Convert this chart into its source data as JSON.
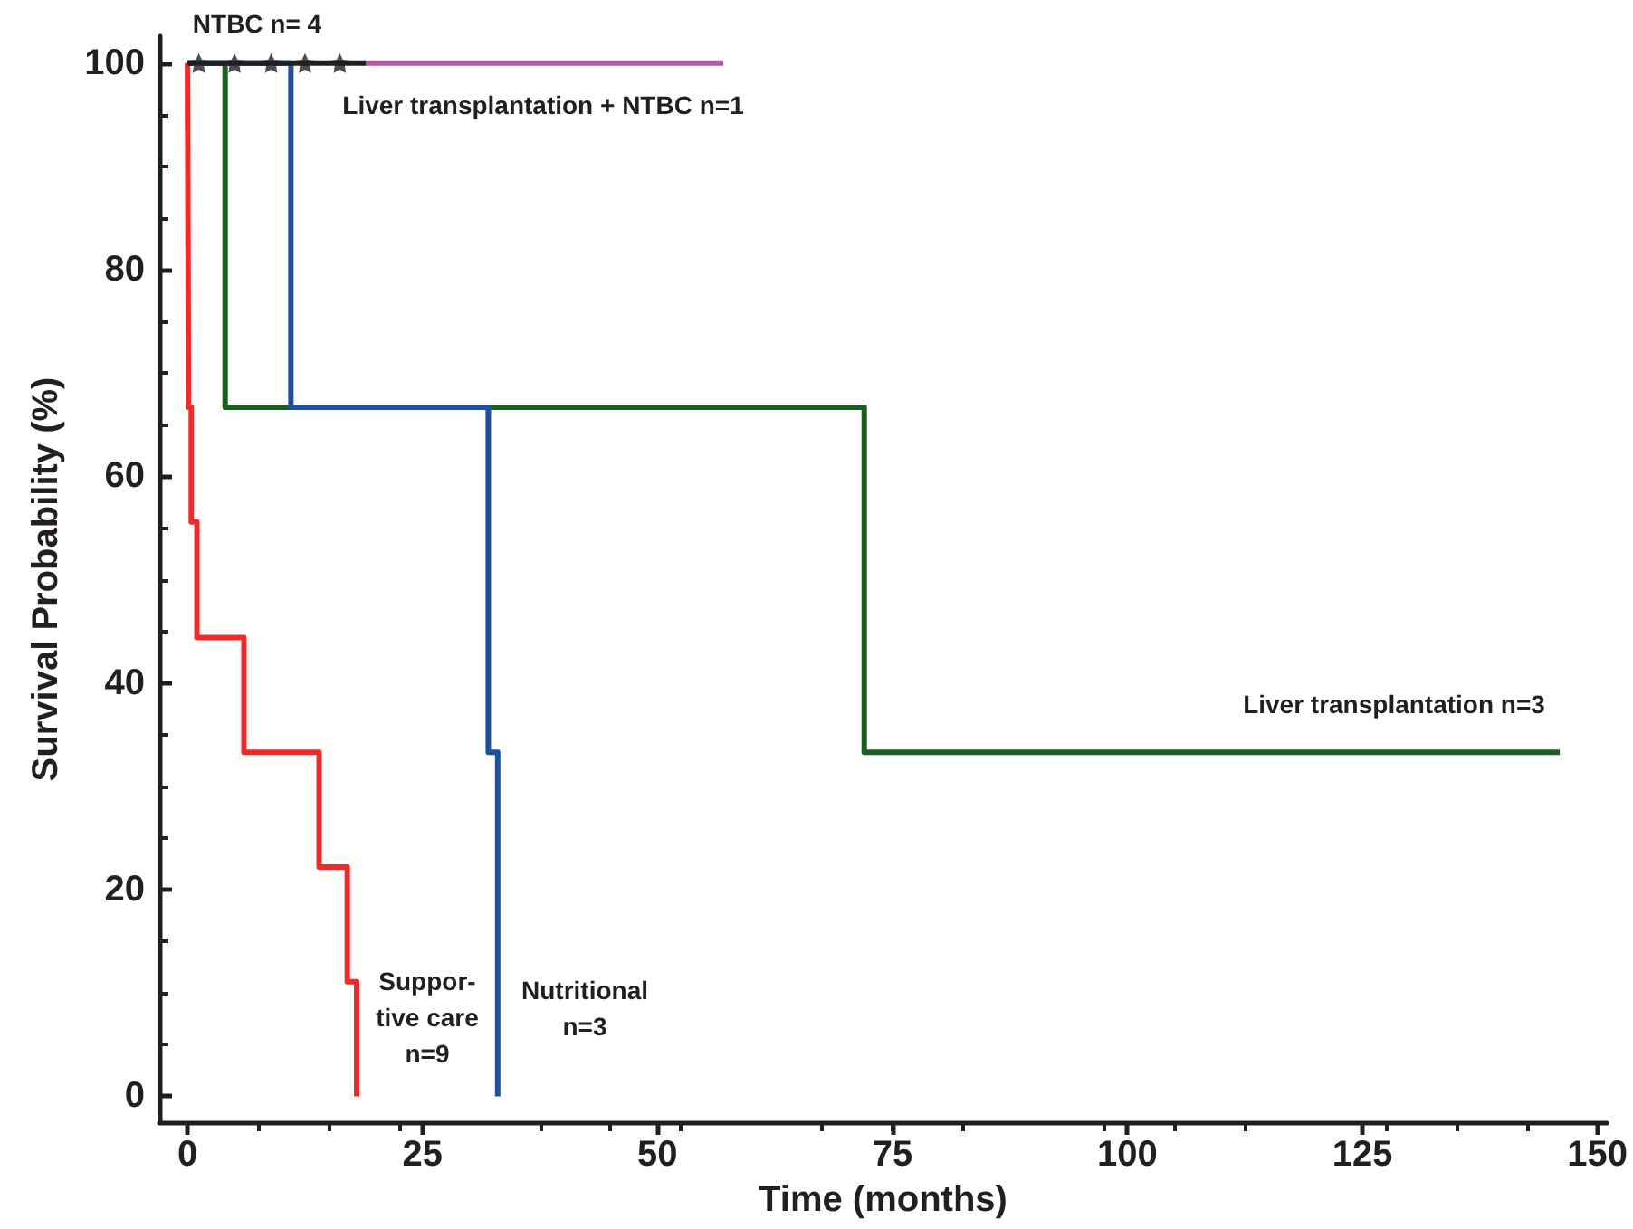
{
  "chart_data": {
    "type": "step",
    "xlabel": "Time (months)",
    "ylabel": "Survival Probability (%)",
    "xlim": [
      -3,
      151
    ],
    "xticks": [
      0,
      25,
      50,
      75,
      100,
      125,
      150
    ],
    "ylim": [
      -2.5,
      102.6
    ],
    "yticks": [
      0,
      20,
      40,
      60,
      80,
      100
    ],
    "grid": false,
    "line_style": "solid",
    "marker": "none",
    "series": [
      {
        "name": "Liver transplantation + NTBC n=1",
        "color": "#b05aa8",
        "x": [
          19,
          57
        ],
        "values": [
          100,
          100
        ]
      },
      {
        "name": "Liver transplantation n=3",
        "color": "#1a5e20",
        "x": [
          0,
          4,
          72,
          146
        ],
        "values": [
          100,
          66.7,
          33.3,
          33.3
        ]
      },
      {
        "name": "Nutritional\nn=3",
        "color": "#1f4fa0",
        "x": [
          0,
          11,
          32,
          33
        ],
        "values": [
          100,
          66.7,
          33.3,
          0
        ]
      },
      {
        "name": "Suppor-\ntive care\nn=9",
        "color": "#ee2a2a",
        "x": [
          0,
          0.1,
          0.4,
          1,
          6,
          14,
          17,
          18
        ],
        "values": [
          100,
          66.7,
          55.6,
          44.4,
          33.3,
          22.2,
          11.1,
          0
        ]
      },
      {
        "name": "NTBC n= 4",
        "color": "#231f20",
        "x": [
          0,
          19
        ],
        "values": [
          100,
          100
        ]
      },
      {
        "type": "scatter",
        "marker": "star",
        "color": "#231f20",
        "x": [
          1.2,
          5,
          8.9,
          12.5,
          16.2
        ],
        "values": [
          100,
          100,
          100,
          100,
          100
        ]
      }
    ]
  }
}
